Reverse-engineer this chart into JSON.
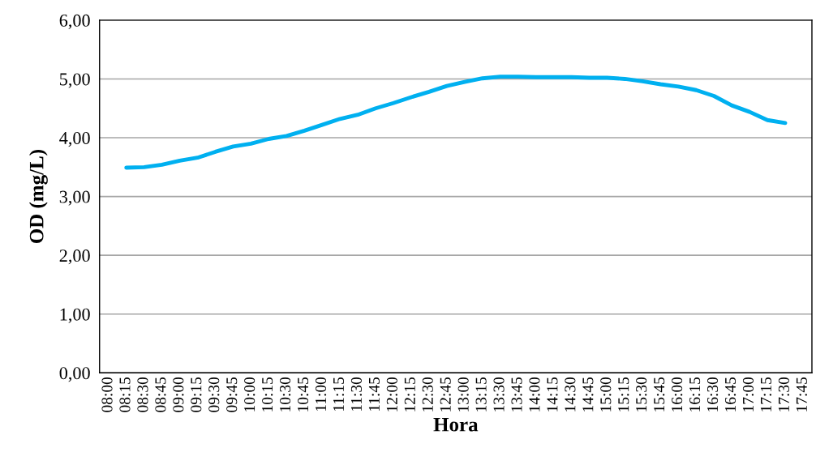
{
  "chart_data": {
    "type": "line",
    "xlabel": "Hora",
    "ylabel": "OD (mg/L)",
    "categories": [
      "08:00",
      "08:15",
      "08:30",
      "08:45",
      "09:00",
      "09:15",
      "09:30",
      "09:45",
      "10:00",
      "10:15",
      "10:30",
      "10:45",
      "11:00",
      "11:15",
      "11:30",
      "11:45",
      "12:00",
      "12:15",
      "12:30",
      "12:45",
      "13:00",
      "13:15",
      "13:30",
      "13:45",
      "14:00",
      "14:15",
      "14:30",
      "14:45",
      "15:00",
      "15:15",
      "15:30",
      "15:45",
      "16:00",
      "16:15",
      "16:30",
      "16:45",
      "17:00",
      "17:15",
      "17:30",
      "17:45"
    ],
    "series": [
      {
        "color": "#00b0f0",
        "values": [
          null,
          3.49,
          3.5,
          3.54,
          3.61,
          3.66,
          3.76,
          3.85,
          3.9,
          3.98,
          4.03,
          4.12,
          4.22,
          4.32,
          4.39,
          4.5,
          4.59,
          4.69,
          4.78,
          4.88,
          4.95,
          5.01,
          5.04,
          5.04,
          5.03,
          5.03,
          5.03,
          5.02,
          5.02,
          5.0,
          4.96,
          4.91,
          4.87,
          4.81,
          4.71,
          4.55,
          4.44,
          4.3,
          4.25,
          null
        ]
      }
    ],
    "ylim": [
      0,
      6
    ],
    "yticks": [
      {
        "value": 0,
        "label": "0,00"
      },
      {
        "value": 1,
        "label": "1,00"
      },
      {
        "value": 2,
        "label": "2,00"
      },
      {
        "value": 3,
        "label": "3,00"
      },
      {
        "value": 4,
        "label": "4,00"
      },
      {
        "value": 5,
        "label": "5,00"
      },
      {
        "value": 6,
        "label": "6,00"
      }
    ],
    "grid": "y",
    "marker": "none",
    "line_style": "solid"
  }
}
